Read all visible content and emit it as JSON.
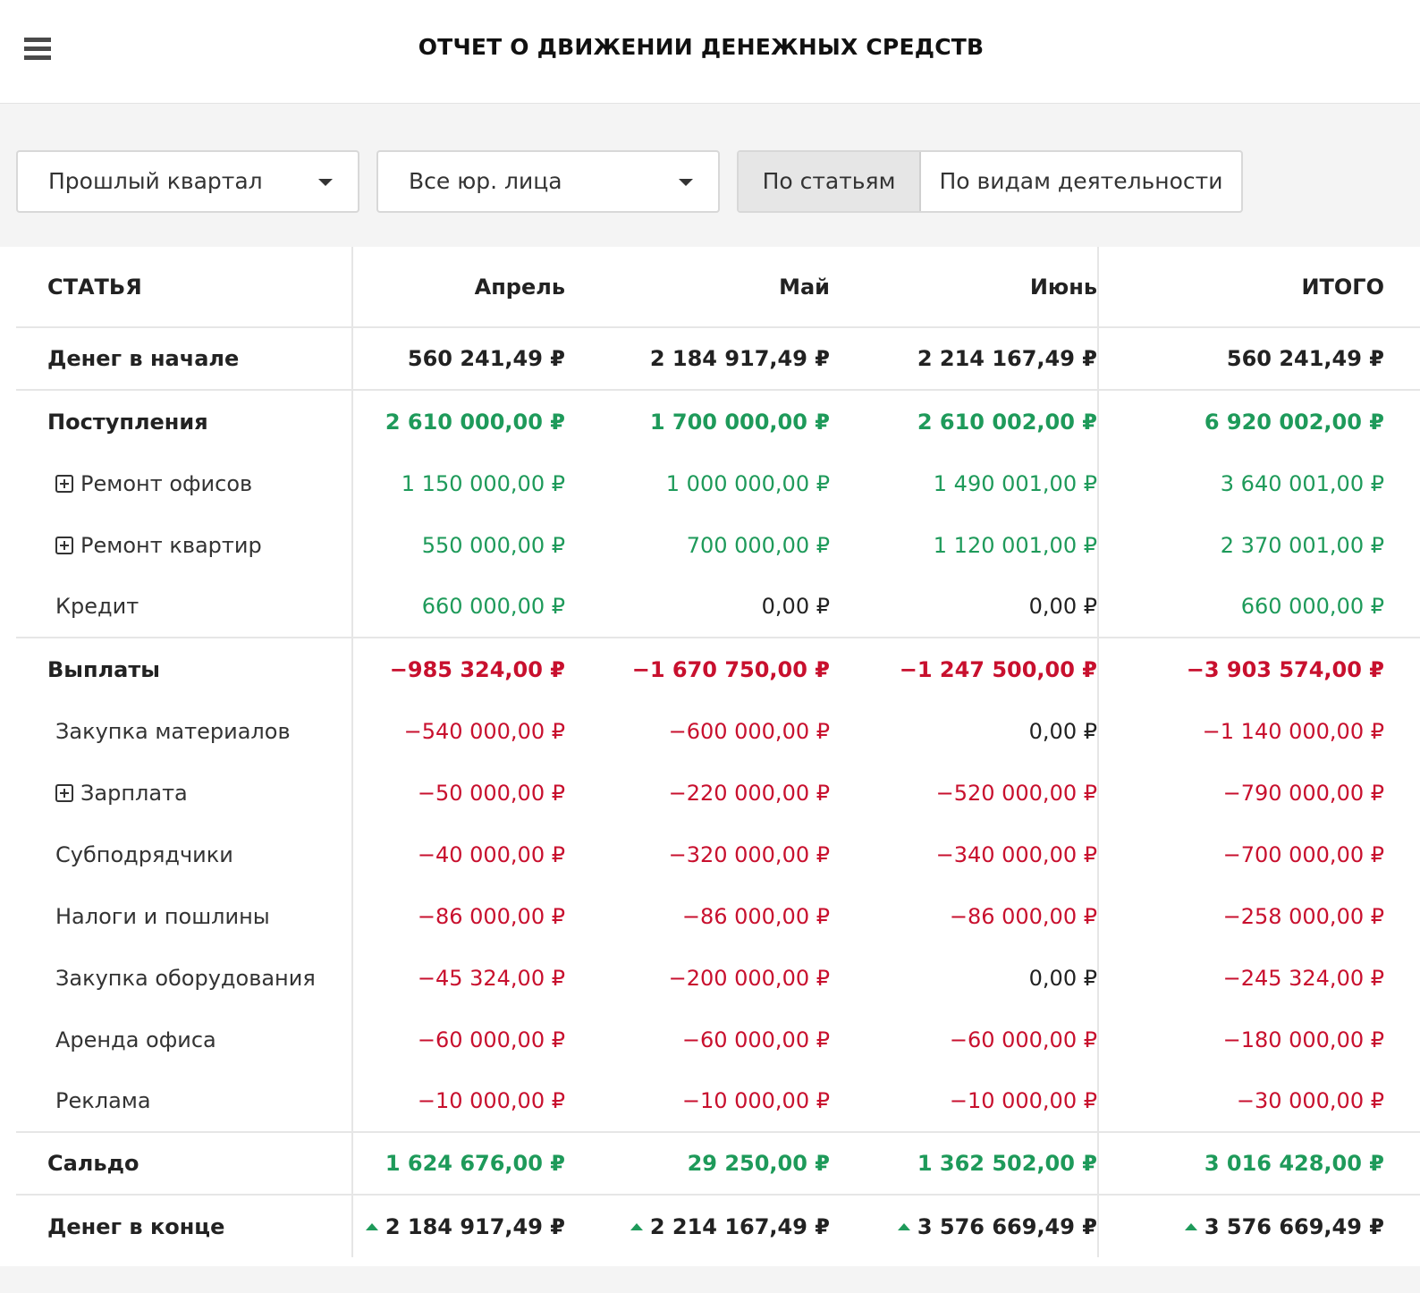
{
  "header": {
    "title": "ОТЧЕТ О ДВИЖЕНИИ ДЕНЕЖНЫХ СРЕДСТВ",
    "menu_icon": "hamburger-menu-icon"
  },
  "filters": {
    "period": "Прошлый квартал",
    "entity": "Все юр. лица",
    "view_tabs": [
      {
        "label": "По статьям",
        "active": true
      },
      {
        "label": "По видам деятельности",
        "active": false
      }
    ]
  },
  "table": {
    "columns": [
      "СТАТЬЯ",
      "Апрель",
      "Май",
      "Июнь",
      "ИТОГО"
    ],
    "rows": [
      {
        "label": "Денег в начале",
        "values": [
          "560 241,49 ₽",
          "2 184 917,49 ₽",
          "2 214 167,49 ₽",
          "560 241,49 ₽"
        ]
      },
      {
        "label": "Поступления",
        "values": [
          "2 610 000,00 ₽",
          "1 700 000,00 ₽",
          "2 610 002,00 ₽",
          "6 920 002,00 ₽"
        ]
      },
      {
        "label": "Ремонт офисов",
        "values": [
          "1 150 000,00 ₽",
          "1 000 000,00 ₽",
          "1 490 001,00 ₽",
          "3 640 001,00 ₽"
        ]
      },
      {
        "label": "Ремонт квартир",
        "values": [
          "550 000,00 ₽",
          "700 000,00 ₽",
          "1 120 001,00 ₽",
          "2 370 001,00 ₽"
        ]
      },
      {
        "label": "Кредит",
        "values": [
          "660 000,00 ₽",
          "0,00 ₽",
          "0,00 ₽",
          "660 000,00 ₽"
        ]
      },
      {
        "label": "Выплаты",
        "values": [
          "−985 324,00 ₽",
          "−1 670 750,00 ₽",
          "−1 247 500,00 ₽",
          "−3 903 574,00 ₽"
        ]
      },
      {
        "label": "Закупка материалов",
        "values": [
          "−540 000,00 ₽",
          "−600 000,00 ₽",
          "0,00 ₽",
          "−1 140 000,00 ₽"
        ]
      },
      {
        "label": "Зарплата",
        "values": [
          "−50 000,00 ₽",
          "−220 000,00 ₽",
          "−520 000,00 ₽",
          "−790 000,00 ₽"
        ]
      },
      {
        "label": "Субподрядчики",
        "values": [
          "−40 000,00 ₽",
          "−320 000,00 ₽",
          "−340 000,00 ₽",
          "−700 000,00 ₽"
        ]
      },
      {
        "label": "Налоги и пошлины",
        "values": [
          "−86 000,00 ₽",
          "−86 000,00 ₽",
          "−86 000,00 ₽",
          "−258 000,00 ₽"
        ]
      },
      {
        "label": "Закупка оборудования",
        "values": [
          "−45 324,00 ₽",
          "−200 000,00 ₽",
          "0,00 ₽",
          "−245 324,00 ₽"
        ]
      },
      {
        "label": "Аренда офиса",
        "values": [
          "−60 000,00 ₽",
          "−60 000,00 ₽",
          "−60 000,00 ₽",
          "−180 000,00 ₽"
        ]
      },
      {
        "label": "Реклама",
        "values": [
          "−10 000,00 ₽",
          "−10 000,00 ₽",
          "−10 000,00 ₽",
          "−30 000,00 ₽"
        ]
      },
      {
        "label": "Сальдо",
        "values": [
          "1 624 676,00 ₽",
          "29 250,00 ₽",
          "1 362 502,00 ₽",
          "3 016 428,00 ₽"
        ]
      },
      {
        "label": "Денег в конце",
        "values": [
          "2 184 917,49 ₽",
          "2 214 167,49 ₽",
          "3 576 669,49 ₽",
          "3 576 669,49 ₽"
        ]
      }
    ]
  },
  "colors": {
    "positive": "#1e9a5a",
    "negative": "#c8102e",
    "text": "#222222"
  },
  "icons": {
    "expand": "plus-square-icon",
    "increase": "triangle-up-icon",
    "dropdown": "caret-down-icon"
  }
}
